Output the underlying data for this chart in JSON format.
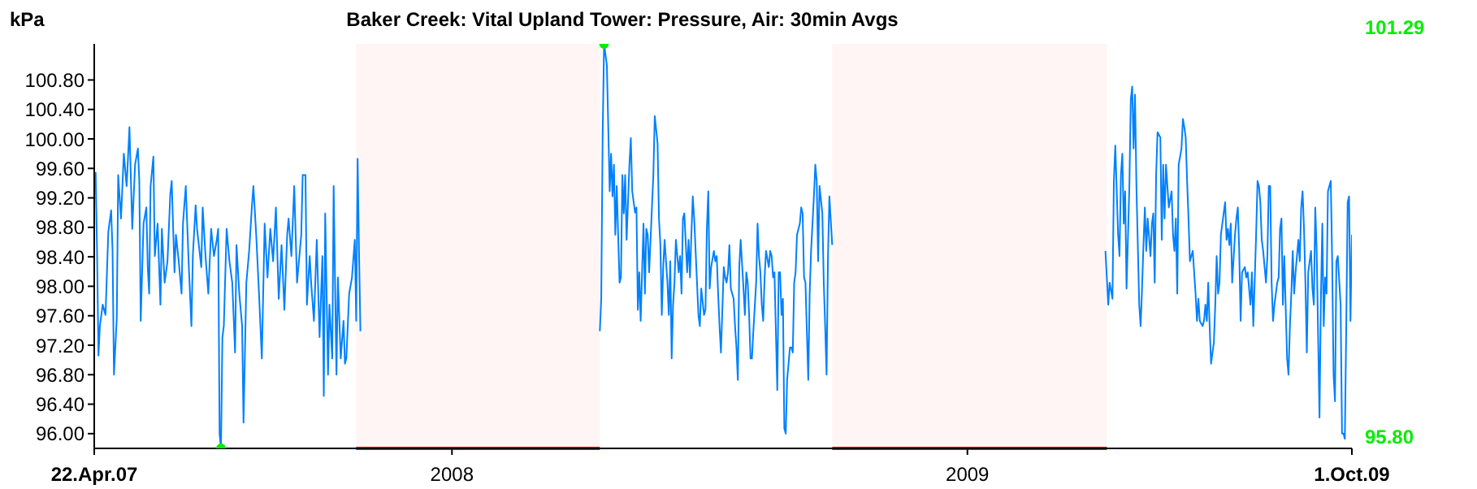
{
  "chart_data": {
    "type": "line",
    "title": "Baker Creek: Vital Upland Tower: Pressure, Air: 30min Avgs",
    "ylabel": "kPa",
    "xlim": [
      "2007-04-22",
      "2009-10-01"
    ],
    "xticks": [
      {
        "value": "2007-04-22",
        "label": "22.Apr.07"
      },
      {
        "value": "2008-01-01",
        "label": "2008"
      },
      {
        "value": "2009-01-01",
        "label": "2009"
      },
      {
        "value": "2009-10-01",
        "label": "1.Oct.09"
      }
    ],
    "ylim": [
      95.8,
      101.29
    ],
    "yticks": [
      {
        "value": 96,
        "label": "96.00"
      },
      {
        "value": 96.4,
        "label": "96.40"
      },
      {
        "value": 96.8,
        "label": "96.80"
      },
      {
        "value": 97.2,
        "label": "97.20"
      },
      {
        "value": 97.6,
        "label": "97.60"
      },
      {
        "value": 98,
        "label": "98.00"
      },
      {
        "value": 98.4,
        "label": "98.40"
      },
      {
        "value": 98.8,
        "label": "98.80"
      },
      {
        "value": 99.2,
        "label": "99.20"
      },
      {
        "value": 99.6,
        "label": "99.60"
      },
      {
        "value": 100,
        "label": "100.00"
      },
      {
        "value": 100.4,
        "label": "100.40"
      },
      {
        "value": 100.8,
        "label": "100.80"
      }
    ],
    "grid": false,
    "legend": false,
    "marker": "none",
    "line_style": "solid",
    "bands": [
      {
        "axis": "x",
        "from": "2007-10-25",
        "to": "2008-04-15",
        "color": "#ff0000"
      },
      {
        "axis": "x",
        "from": "2008-09-27",
        "to": "2009-04-10",
        "color": "#ff0000"
      }
    ],
    "annotations": [
      "101.29",
      "95.80"
    ],
    "series": [
      {
        "type": "scatter",
        "color": "#00ee00",
        "marker": "circle",
        "x": [
          "2008-04-18",
          "2007-07-21"
        ],
        "values": [
          101.29,
          95.8
        ]
      },
      {
        "color": "#0080ff",
        "x": [
          "2007-04-22",
          "2007-04-23",
          "2007-04-24",
          "2007-04-25",
          "2007-04-26",
          "2007-04-28",
          "2007-04-30",
          "2007-05-02",
          "2007-05-04",
          "2007-05-05",
          "2007-05-06",
          "2007-05-08",
          "2007-05-09",
          "2007-05-11",
          "2007-05-13",
          "2007-05-15",
          "2007-05-17",
          "2007-05-19",
          "2007-05-21",
          "2007-05-23",
          "2007-05-24",
          "2007-05-25",
          "2007-05-27",
          "2007-05-29",
          "2007-05-30",
          "2007-05-31",
          "2007-06-01",
          "2007-06-03",
          "2007-06-04",
          "2007-06-06",
          "2007-06-08",
          "2007-06-09",
          "2007-06-11",
          "2007-06-13",
          "2007-06-15",
          "2007-06-16",
          "2007-06-18",
          "2007-06-19",
          "2007-06-21",
          "2007-06-23",
          "2007-06-24",
          "2007-06-26",
          "2007-06-28",
          "2007-06-30",
          "2007-07-01",
          "2007-07-03",
          "2007-07-04",
          "2007-07-07",
          "2007-07-08",
          "2007-07-10",
          "2007-07-12",
          "2007-07-14",
          "2007-07-16",
          "2007-07-18",
          "2007-07-19",
          "2007-07-20",
          "2007-07-21",
          "2007-07-22",
          "2007-07-23",
          "2007-07-25",
          "2007-07-27",
          "2007-07-29",
          "2007-07-31",
          "2007-08-01",
          "2007-08-03",
          "2007-08-05",
          "2007-08-06",
          "2007-08-08",
          "2007-08-10",
          "2007-08-12",
          "2007-08-13",
          "2007-08-15",
          "2007-08-17",
          "2007-08-19",
          "2007-08-21",
          "2007-08-23",
          "2007-08-25",
          "2007-08-27",
          "2007-08-29",
          "2007-08-31",
          "2007-09-02",
          "2007-09-04",
          "2007-09-06",
          "2007-09-07",
          "2007-09-09",
          "2007-09-11",
          "2007-09-13",
          "2007-09-16",
          "2007-09-17",
          "2007-09-19",
          "2007-09-20",
          "2007-09-22",
          "2007-09-23",
          "2007-09-25",
          "2007-09-27",
          "2007-09-29",
          "2007-10-01",
          "2007-10-02",
          "2007-10-03",
          "2007-10-05",
          "2007-10-06",
          "2007-10-08",
          "2007-10-09",
          "2007-10-10",
          "2007-10-11",
          "2007-10-12",
          "2007-10-14",
          "2007-10-16",
          "2007-10-17",
          "2007-10-18",
          "2007-10-20",
          "2007-10-22",
          "2007-10-24",
          "2007-10-25",
          "2007-10-26",
          "2007-10-27",
          "2007-10-28",
          "2007-12-01",
          "2008-04-15",
          "2008-04-16",
          "2008-04-17",
          "2008-04-18",
          "2008-04-20",
          "2008-04-22",
          "2008-04-23",
          "2008-04-24",
          "2008-04-25",
          "2008-04-26",
          "2008-04-27",
          "2008-04-29",
          "2008-04-30",
          "2008-05-01",
          "2008-05-02",
          "2008-05-03",
          "2008-05-04",
          "2008-05-06",
          "2008-05-07",
          "2008-05-08",
          "2008-05-10",
          "2008-05-11",
          "2008-05-12",
          "2008-05-13",
          "2008-05-14",
          "2008-05-16",
          "2008-05-17",
          "2008-05-18",
          "2008-05-19",
          "2008-05-20",
          "2008-05-22",
          "2008-05-23",
          "2008-05-24",
          "2008-05-26",
          "2008-05-27",
          "2008-05-28",
          "2008-05-29",
          "2008-05-30",
          "2008-05-31",
          "2008-06-02",
          "2008-06-03",
          "2008-06-04",
          "2008-06-05",
          "2008-06-06",
          "2008-06-07",
          "2008-06-08",
          "2008-06-10",
          "2008-06-11",
          "2008-06-12",
          "2008-06-13",
          "2008-06-14",
          "2008-06-16",
          "2008-06-17",
          "2008-06-18",
          "2008-06-19",
          "2008-06-20",
          "2008-06-21",
          "2008-06-23",
          "2008-06-24",
          "2008-06-25",
          "2008-06-26",
          "2008-06-28",
          "2008-06-29",
          "2008-06-30",
          "2008-07-01",
          "2008-07-02",
          "2008-07-03",
          "2008-07-05",
          "2008-07-06",
          "2008-07-07",
          "2008-07-08",
          "2008-07-09",
          "2008-07-10",
          "2008-07-12",
          "2008-07-13",
          "2008-07-14",
          "2008-07-15",
          "2008-07-16",
          "2008-07-17",
          "2008-07-19",
          "2008-07-20",
          "2008-07-21",
          "2008-07-22",
          "2008-07-23",
          "2008-07-24",
          "2008-07-26",
          "2008-07-27",
          "2008-07-28",
          "2008-07-29",
          "2008-07-30",
          "2008-07-31",
          "2008-08-01",
          "2008-08-02",
          "2008-08-04",
          "2008-08-05",
          "2008-08-06",
          "2008-08-07",
          "2008-08-08",
          "2008-08-09",
          "2008-08-10",
          "2008-08-11",
          "2008-08-13",
          "2008-08-14",
          "2008-08-15",
          "2008-08-16",
          "2008-08-17",
          "2008-08-19",
          "2008-08-20",
          "2008-08-21",
          "2008-08-22",
          "2008-08-23",
          "2008-08-24",
          "2008-08-25",
          "2008-08-26",
          "2008-08-28",
          "2008-08-29",
          "2008-08-30",
          "2008-08-31",
          "2008-09-01",
          "2008-09-02",
          "2008-09-04",
          "2008-09-05",
          "2008-09-06",
          "2008-09-07",
          "2008-09-08",
          "2008-09-09",
          "2008-09-10",
          "2008-09-11",
          "2008-09-12",
          "2008-09-14",
          "2008-09-15",
          "2008-09-16",
          "2008-09-17",
          "2008-09-18",
          "2008-09-20",
          "2008-09-21",
          "2008-09-22",
          "2008-09-23",
          "2008-09-24",
          "2008-09-25",
          "2008-09-27",
          "2008-12-01",
          "2009-04-09",
          "2009-04-10",
          "2009-04-11",
          "2009-04-12",
          "2009-04-14",
          "2009-04-15",
          "2009-04-16",
          "2009-04-18",
          "2009-04-19",
          "2009-04-20",
          "2009-04-21",
          "2009-04-22",
          "2009-04-23",
          "2009-04-24",
          "2009-04-26",
          "2009-04-27",
          "2009-04-28",
          "2009-04-29",
          "2009-04-30",
          "2009-05-01",
          "2009-05-03",
          "2009-05-04",
          "2009-05-05",
          "2009-05-06",
          "2009-05-07",
          "2009-05-08",
          "2009-05-09",
          "2009-05-11",
          "2009-05-12",
          "2009-05-13",
          "2009-05-14",
          "2009-05-15",
          "2009-05-16",
          "2009-05-18",
          "2009-05-19",
          "2009-05-20",
          "2009-05-21",
          "2009-05-22",
          "2009-05-23",
          "2009-05-24",
          "2009-05-26",
          "2009-05-27",
          "2009-05-28",
          "2009-05-29",
          "2009-05-30",
          "2009-05-31",
          "2009-06-02",
          "2009-06-03",
          "2009-06-04",
          "2009-06-05",
          "2009-06-06",
          "2009-06-07",
          "2009-06-08",
          "2009-06-10",
          "2009-06-11",
          "2009-06-12",
          "2009-06-13",
          "2009-06-14",
          "2009-06-15",
          "2009-06-17",
          "2009-06-18",
          "2009-06-19",
          "2009-06-20",
          "2009-06-21",
          "2009-06-22",
          "2009-06-23",
          "2009-06-25",
          "2009-06-26",
          "2009-06-27",
          "2009-06-28",
          "2009-06-29",
          "2009-06-30",
          "2009-07-01",
          "2009-07-03",
          "2009-07-04",
          "2009-07-05",
          "2009-07-06",
          "2009-07-07",
          "2009-07-08",
          "2009-07-10",
          "2009-07-11",
          "2009-07-12",
          "2009-07-13",
          "2009-07-14",
          "2009-07-15",
          "2009-07-17",
          "2009-07-18",
          "2009-07-19",
          "2009-07-20",
          "2009-07-21",
          "2009-07-22",
          "2009-07-23",
          "2009-07-25",
          "2009-07-26",
          "2009-07-27",
          "2009-07-28",
          "2009-07-29",
          "2009-07-30",
          "2009-08-01",
          "2009-08-02",
          "2009-08-03",
          "2009-08-04",
          "2009-08-05",
          "2009-08-06",
          "2009-08-07",
          "2009-08-09",
          "2009-08-10",
          "2009-08-11",
          "2009-08-12",
          "2009-08-13",
          "2009-08-14",
          "2009-08-16",
          "2009-08-17",
          "2009-08-18",
          "2009-08-19",
          "2009-08-20",
          "2009-08-21",
          "2009-08-22",
          "2009-08-24",
          "2009-08-25",
          "2009-08-26",
          "2009-08-27",
          "2009-08-28",
          "2009-08-29",
          "2009-08-30",
          "2009-08-31",
          "2009-09-02",
          "2009-09-03",
          "2009-09-04",
          "2009-09-05",
          "2009-09-06",
          "2009-09-08",
          "2009-09-09",
          "2009-09-10",
          "2009-09-11",
          "2009-09-12",
          "2009-09-13",
          "2009-09-14",
          "2009-09-16",
          "2009-09-17",
          "2009-09-18",
          "2009-09-19",
          "2009-09-20",
          "2009-09-21",
          "2009-09-23",
          "2009-09-24",
          "2009-09-25",
          "2009-09-26",
          "2009-09-27",
          "2009-09-28",
          "2009-09-29",
          "2009-09-30",
          "2009-10-01"
        ],
        "values": [
          99.36,
          99.54,
          98.48,
          97.06,
          97.46,
          97.75,
          97.61,
          98.74,
          99.03,
          98.48,
          96.8,
          97.57,
          99.51,
          98.92,
          99.8,
          99.36,
          100.16,
          98.78,
          99.65,
          99.87,
          99.43,
          97.53,
          98.85,
          99.07,
          98.26,
          97.9,
          99.36,
          99.76,
          98.41,
          98.85,
          97.75,
          98.78,
          98.05,
          98.34,
          99.25,
          99.43,
          98.19,
          98.7,
          98.34,
          97.9,
          98.85,
          99.36,
          98.34,
          97.46,
          98.41,
          99.1,
          98.78,
          98.26,
          99.07,
          98.41,
          97.9,
          98.78,
          98.41,
          98.63,
          98.78,
          96.0,
          95.8,
          97.31,
          97.46,
          98.78,
          98.34,
          98.05,
          97.1,
          98.56,
          97.9,
          97.46,
          96.15,
          98.05,
          98.48,
          99.1,
          99.36,
          98.7,
          97.9,
          97.02,
          98.85,
          98.12,
          98.78,
          98.34,
          99.07,
          97.83,
          98.56,
          97.68,
          98.7,
          98.92,
          98.41,
          99.36,
          98.05,
          98.7,
          99.51,
          99.51,
          97.75,
          98.41,
          98.05,
          97.53,
          98.63,
          97.31,
          98.41,
          96.51,
          98.99,
          96.8,
          97.75,
          97.02,
          99.36,
          98.05,
          96.8,
          98.12,
          97.02,
          97.53,
          96.95,
          97.02,
          97.9,
          98.12,
          98.63,
          97.53,
          99.73,
          98.48,
          97.39,
          null,
          97.39,
          97.83,
          100.05,
          101.29,
          101.0,
          99.29,
          99.8,
          99.22,
          99.65,
          98.7,
          99.36,
          98.05,
          98.12,
          99.51,
          98.99,
          99.51,
          98.63,
          99.65,
          100.01,
          99.29,
          99.0,
          99.07,
          97.68,
          98.19,
          97.53,
          98.85,
          97.9,
          98.78,
          98.7,
          98.19,
          99.07,
          99.51,
          100.31,
          99.94,
          98.92,
          98.56,
          97.61,
          98.26,
          98.63,
          98.05,
          97.61,
          98.34,
          97.02,
          97.75,
          98.05,
          98.63,
          98.19,
          98.41,
          97.9,
          98.92,
          98.99,
          98.19,
          98.63,
          98.12,
          98.7,
          99.22,
          98.92,
          98.05,
          97.61,
          97.46,
          97.97,
          97.61,
          97.68,
          98.78,
          99.29,
          97.97,
          98.26,
          98.48,
          98.34,
          98.41,
          97.9,
          97.46,
          97.1,
          98.26,
          98.12,
          98.05,
          98.19,
          98.56,
          97.97,
          97.83,
          97.46,
          97.17,
          96.73,
          98.26,
          98.63,
          97.97,
          97.61,
          98.19,
          98.05,
          97.61,
          97.02,
          97.02,
          97.39,
          98.05,
          98.85,
          98.41,
          98.19,
          97.75,
          97.53,
          98.12,
          98.48,
          98.26,
          98.48,
          98.41,
          98.12,
          98.19,
          96.59,
          98.19,
          98.19,
          97.61,
          97.83,
          96.07,
          96.0,
          96.73,
          97.17,
          97.17,
          97.1,
          98.05,
          98.19,
          98.7,
          98.85,
          99.07,
          98.99,
          98.12,
          98.05,
          97.39,
          96.73,
          97.9,
          98.48,
          99.22,
          99.65,
          99.43,
          98.34,
          99.36,
          98.99,
          98.05,
          97.46,
          96.8,
          98.41,
          99.22,
          98.56,
          null,
          98.48,
          98.12,
          97.75,
          98.05,
          97.83,
          99.43,
          99.91,
          98.7,
          98.41,
          99.51,
          99.8,
          98.85,
          99.29,
          97.97,
          99.36,
          100.53,
          100.71,
          99.87,
          100.6,
          99.36,
          97.75,
          97.46,
          97.97,
          98.56,
          99.07,
          98.48,
          98.92,
          98.41,
          98.85,
          98.99,
          98.05,
          99.51,
          100.09,
          100.02,
          98.63,
          99.65,
          98.92,
          99.65,
          99.36,
          99.07,
          99.29,
          98.7,
          98.48,
          98.92,
          97.9,
          99.65,
          99.87,
          100.27,
          100.16,
          100.02,
          99.43,
          98.92,
          98.34,
          98.48,
          98.19,
          97.9,
          97.53,
          97.83,
          97.53,
          97.46,
          97.53,
          97.75,
          97.53,
          98.05,
          97.46,
          96.95,
          97.24,
          97.75,
          98.41,
          97.9,
          98.05,
          98.7,
          98.85,
          99.14,
          98.63,
          98.78,
          98.56,
          98.85,
          98.05,
          98.7,
          98.92,
          99.07,
          98.48,
          97.53,
          98.19,
          98.26,
          98.12,
          98.19,
          97.97,
          97.75,
          98.19,
          97.46,
          98.7,
          99.43,
          99.36,
          99.14,
          98.63,
          98.48,
          98.05,
          98.41,
          99.36,
          99.36,
          98.05,
          97.53,
          97.75,
          98.05,
          98.12,
          98.78,
          98.92,
          97.75,
          98.41,
          97.02,
          96.8,
          97.46,
          97.9,
          98.48,
          97.9,
          98.19,
          98.63,
          98.34,
          99.07,
          99.29,
          98.78,
          98.05,
          97.1,
          98.19,
          98.48,
          97.97,
          97.75,
          99.07,
          98.48,
          96.22,
          97.83,
          98.85,
          97.46,
          98.12,
          97.9,
          99.29,
          99.43,
          98.34,
          96.8,
          96.44,
          98.34,
          98.41,
          97.75,
          96.0,
          96.0,
          95.93,
          97.46,
          99.14,
          99.22,
          97.53,
          98.7
        ]
      }
    ]
  }
}
